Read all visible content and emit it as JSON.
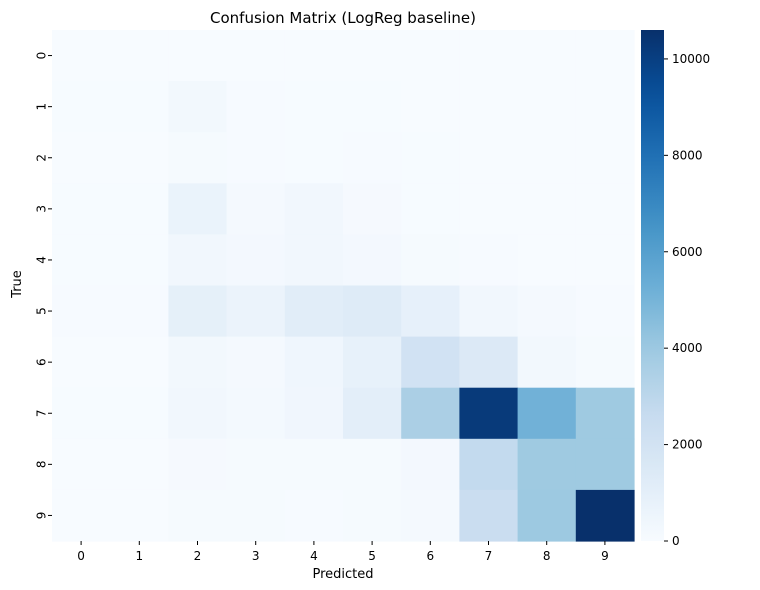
{
  "chart_data": {
    "type": "heatmap",
    "title": "Confusion Matrix (LogReg baseline)",
    "xlabel": "Predicted",
    "ylabel": "True",
    "x_categories": [
      "0",
      "1",
      "2",
      "3",
      "4",
      "5",
      "6",
      "7",
      "8",
      "9"
    ],
    "y_categories": [
      "0",
      "1",
      "2",
      "3",
      "4",
      "5",
      "6",
      "7",
      "8",
      "9"
    ],
    "values": [
      [
        0,
        0,
        0,
        0,
        0,
        0,
        0,
        0,
        0,
        0
      ],
      [
        40,
        40,
        250,
        60,
        30,
        40,
        20,
        10,
        5,
        5
      ],
      [
        20,
        20,
        120,
        60,
        40,
        70,
        30,
        10,
        5,
        5
      ],
      [
        30,
        30,
        700,
        180,
        320,
        130,
        40,
        15,
        10,
        5
      ],
      [
        30,
        30,
        320,
        230,
        320,
        230,
        120,
        60,
        20,
        10
      ],
      [
        50,
        50,
        950,
        650,
        1150,
        1350,
        900,
        320,
        150,
        60
      ],
      [
        20,
        20,
        250,
        170,
        400,
        850,
        2050,
        1450,
        280,
        120
      ],
      [
        30,
        30,
        300,
        200,
        380,
        1050,
        3550,
        10200,
        5150,
        3950
      ],
      [
        20,
        20,
        130,
        110,
        90,
        110,
        220,
        2750,
        3950,
        3950
      ],
      [
        15,
        15,
        110,
        90,
        60,
        90,
        160,
        2450,
        4000,
        10600
      ]
    ],
    "colormap": "Blues",
    "vmin": 0,
    "vmax": 10600,
    "colorbar_ticks": [
      0,
      2000,
      4000,
      6000,
      8000,
      10000
    ],
    "colorbar_tick_labels": [
      "0",
      "2000",
      "4000",
      "6000",
      "8000",
      "10000"
    ]
  }
}
